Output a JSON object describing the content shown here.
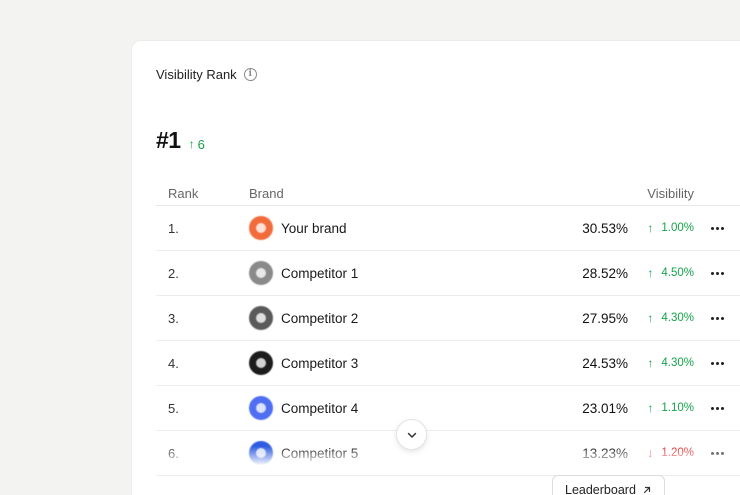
{
  "card": {
    "title": "Visibility Rank",
    "info_icon": "info-circle-icon"
  },
  "rank": {
    "value": "#1",
    "change": "6",
    "change_direction": "up"
  },
  "table": {
    "headers": {
      "rank": "Rank",
      "brand": "Brand",
      "visibility": "Visibility"
    },
    "rows": [
      {
        "rank": "1.",
        "brand": "Your brand",
        "visibility": "30.53%",
        "change": "1.00%",
        "direction": "up",
        "logo_color": "#f26b3a"
      },
      {
        "rank": "2.",
        "brand": "Competitor 1",
        "visibility": "28.52%",
        "change": "4.50%",
        "direction": "up",
        "logo_color": "#8a8a8a"
      },
      {
        "rank": "3.",
        "brand": "Competitor 2",
        "visibility": "27.95%",
        "change": "4.30%",
        "direction": "up",
        "logo_color": "#5a5a5a"
      },
      {
        "rank": "4.",
        "brand": "Competitor 3",
        "visibility": "24.53%",
        "change": "4.30%",
        "direction": "up",
        "logo_color": "#1c1c1c"
      },
      {
        "rank": "5.",
        "brand": "Competitor 4",
        "visibility": "23.01%",
        "change": "1.10%",
        "direction": "up",
        "logo_color": "#4f6ef2"
      },
      {
        "rank": "6.",
        "brand": "Competitor 5",
        "visibility": "13.23%",
        "change": "1.20%",
        "direction": "down",
        "logo_color": "#2f5be0"
      }
    ]
  },
  "actions": {
    "leaderboard_label": "Leaderboard",
    "scroll_icon": "chevron-down-icon"
  },
  "colors": {
    "positive": "#16a34a",
    "negative": "#dc2626"
  }
}
